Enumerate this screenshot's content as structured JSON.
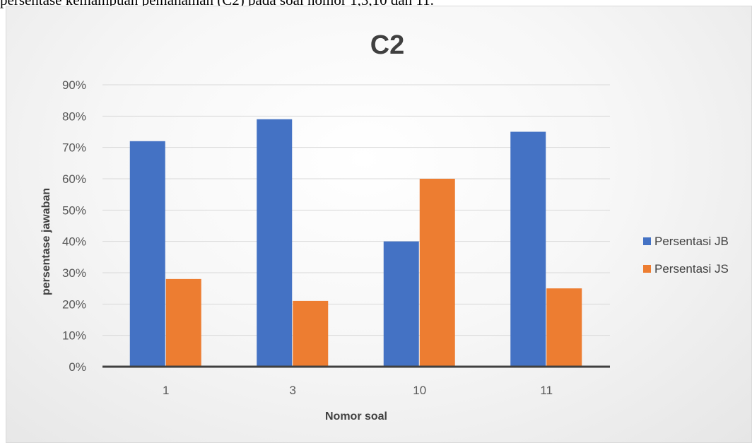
{
  "caption": "persentase kemampuan pemahaman (C2) pada soal nomor 1,3,10 dan 11.",
  "chart_data": {
    "type": "bar",
    "title": "C2",
    "xlabel": "Nomor soal",
    "ylabel": "persentase jawaban",
    "categories": [
      "1",
      "3",
      "10",
      "11"
    ],
    "series": [
      {
        "name": "Persentasi JB",
        "values": [
          72,
          79,
          40,
          75
        ],
        "color": "#4472c4"
      },
      {
        "name": "Persentasi JS",
        "values": [
          28,
          21,
          60,
          25
        ],
        "color": "#ed7d31"
      }
    ],
    "ylim": [
      0,
      90
    ],
    "ytick_step": 10,
    "ytick_suffix": "%",
    "grid": true,
    "legend_position": "right"
  }
}
